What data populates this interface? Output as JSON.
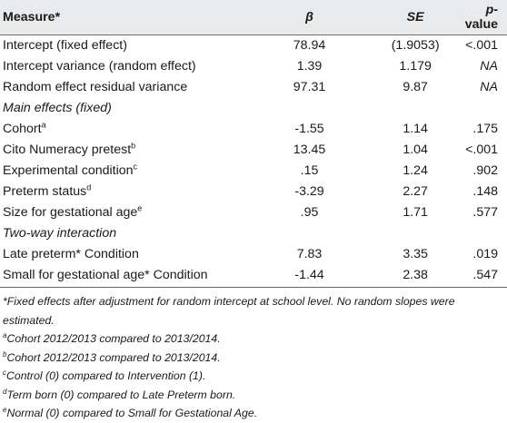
{
  "table": {
    "headers": {
      "measure": "Measure*",
      "beta": "β",
      "se": "SE",
      "p_italic": "p",
      "p_rest": "-value"
    },
    "rows": [
      {
        "measure": "Intercept (fixed effect)",
        "sup": "",
        "beta": "78.94",
        "se": "(1.9053)",
        "p": "<.001",
        "italic": false,
        "p_italic": false
      },
      {
        "measure": "Intercept variance (random effect)",
        "sup": "",
        "beta": "1.39",
        "se": "1.179",
        "p": "NA",
        "italic": false,
        "p_italic": true
      },
      {
        "measure": "Random effect residual variance",
        "sup": "",
        "beta": "97.31",
        "se": "9.87",
        "p": "NA",
        "italic": false,
        "p_italic": true
      },
      {
        "measure": "Main effects (fixed)",
        "sup": "",
        "beta": "",
        "se": "",
        "p": "",
        "italic": true,
        "p_italic": false
      },
      {
        "measure": "Cohort",
        "sup": "a",
        "beta": "-1.55",
        "se": "1.14",
        "p": ".175",
        "italic": false,
        "p_italic": false
      },
      {
        "measure": "Cito Numeracy pretest",
        "sup": "b",
        "beta": "13.45",
        "se": "1.04",
        "p": "<.001",
        "italic": false,
        "p_italic": false
      },
      {
        "measure": "Experimental condition",
        "sup": "c",
        "beta": ".15",
        "se": "1.24",
        "p": ".902",
        "italic": false,
        "p_italic": false
      },
      {
        "measure": "Preterm status",
        "sup": "d",
        "beta": "-3.29",
        "se": "2.27",
        "p": ".148",
        "italic": false,
        "p_italic": false
      },
      {
        "measure": "Size for gestational age",
        "sup": "e",
        "beta": ".95",
        "se": "1.71",
        "p": ".577",
        "italic": false,
        "p_italic": false
      },
      {
        "measure": "Two-way interaction",
        "sup": "",
        "beta": "",
        "se": "",
        "p": "",
        "italic": true,
        "p_italic": false
      },
      {
        "measure": "Late preterm* Condition",
        "sup": "",
        "beta": "7.83",
        "se": "3.35",
        "p": ".019",
        "italic": false,
        "p_italic": false
      },
      {
        "measure": "Small for gestational age* Condition",
        "sup": "",
        "beta": "-1.44",
        "se": "2.38",
        "p": ".547",
        "italic": false,
        "p_italic": false
      }
    ]
  },
  "notes": {
    "star": "*Fixed effects after adjustment for random intercept at school level. No random slopes were estimated.",
    "a": {
      "mark": "a",
      "text": "Cohort 2012/2013 compared to 2013/2014."
    },
    "b": {
      "mark": "b",
      "text": "Cohort 2012/2013 compared to 2013/2014."
    },
    "c": {
      "mark": "c",
      "text": "Control (0) compared to Intervention (1)."
    },
    "d": {
      "mark": "d",
      "text": "Term born (0) compared to Late Preterm born."
    },
    "e": {
      "mark": "e",
      "text": "Normal (0) compared to Small for Gestational Age."
    }
  }
}
